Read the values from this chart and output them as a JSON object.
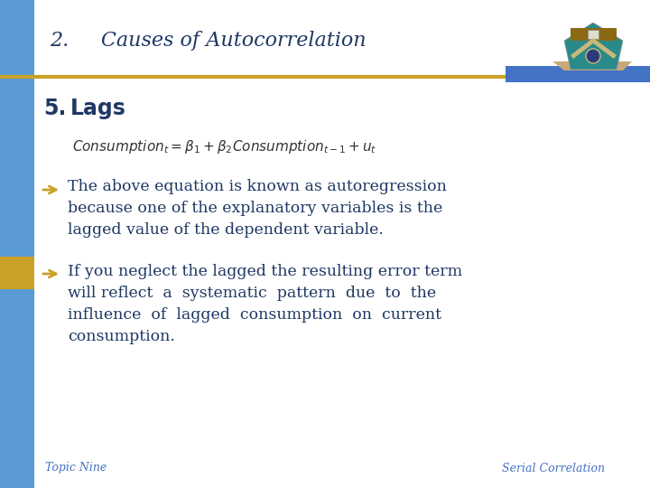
{
  "bg_color": "#ffffff",
  "left_bar_color": "#5b9bd5",
  "gold_accent_color": "#c9a227",
  "header_text": "2.     Causes of Autocorrelation",
  "header_color": "#1f3864",
  "section_label": "5.",
  "section_title": "Lags",
  "section_color": "#1f3864",
  "formula_color": "#333333",
  "bullet_color": "#1f3864",
  "arrow_color": "#c9a227",
  "footer_left": "Topic Nine",
  "footer_right": "Serial Correlation",
  "footer_color": "#4472c4",
  "divider_gold_color": "#c9a227",
  "divider_blue_color": "#4472c4",
  "title_font_size": 16,
  "section_font_size": 17,
  "body_font_size": 12.5,
  "formula_font_size": 11,
  "footer_font_size": 9
}
